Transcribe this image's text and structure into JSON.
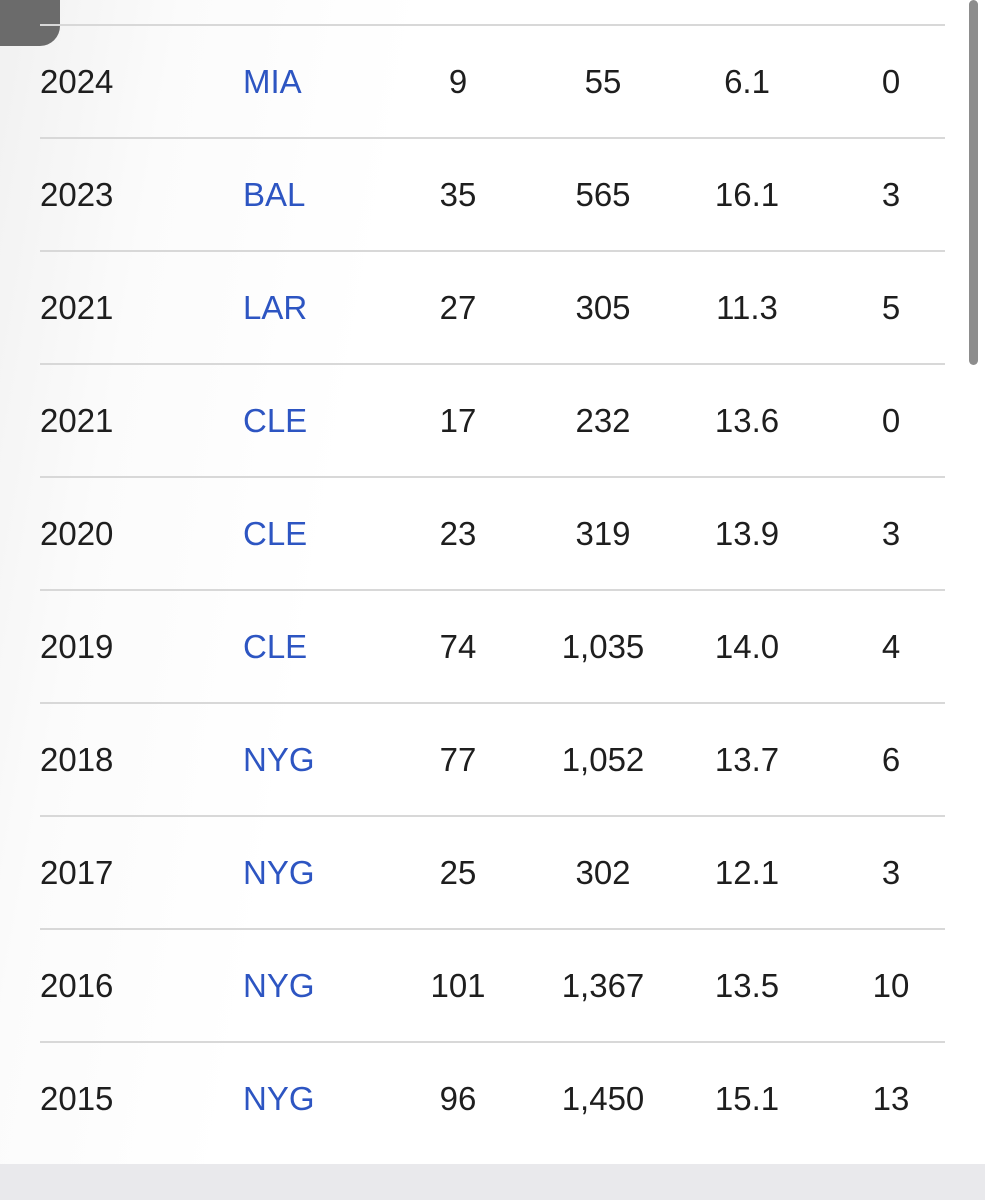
{
  "rows": [
    [
      "2024",
      "MIA",
      "9",
      "55",
      "6.1",
      "0"
    ],
    [
      "2023",
      "BAL",
      "35",
      "565",
      "16.1",
      "3"
    ],
    [
      "2021",
      "LAR",
      "27",
      "305",
      "11.3",
      "5"
    ],
    [
      "2021",
      "CLE",
      "17",
      "232",
      "13.6",
      "0"
    ],
    [
      "2020",
      "CLE",
      "23",
      "319",
      "13.9",
      "3"
    ],
    [
      "2019",
      "CLE",
      "74",
      "1,035",
      "14.0",
      "4"
    ],
    [
      "2018",
      "NYG",
      "77",
      "1,052",
      "13.7",
      "6"
    ],
    [
      "2017",
      "NYG",
      "25",
      "302",
      "12.1",
      "3"
    ],
    [
      "2016",
      "NYG",
      "101",
      "1,367",
      "13.5",
      "10"
    ],
    [
      "2015",
      "NYG",
      "96",
      "1,450",
      "15.1",
      "13"
    ]
  ]
}
